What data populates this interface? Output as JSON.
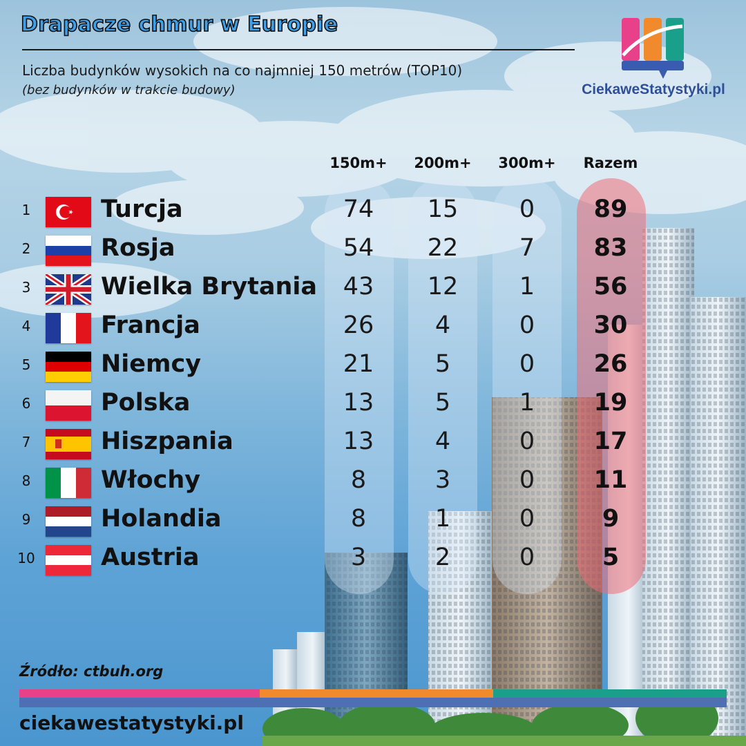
{
  "header": {
    "title": "Drapacze chmur w Europie",
    "subtitle": "Liczba budynków wysokich na co najmniej  150 metrów (TOP10)",
    "note": "(bez budynków w trakcie budowy)"
  },
  "brand": {
    "logo_text": "CiekaweStatystyki.pl",
    "colors": [
      "#e8418a",
      "#f08a2c",
      "#1aa08a",
      "#3a5cb0"
    ]
  },
  "footer": {
    "source": "Źródło: ctbuh.org",
    "site": "ciekawestatystyki.pl"
  },
  "chart_data": {
    "type": "table",
    "columns": [
      "150m+",
      "200m+",
      "300m+",
      "Razem"
    ],
    "rows": [
      {
        "rank": "1",
        "country": "Turcja",
        "flag": "turkey-flag",
        "values": [
          "74",
          "15",
          "0",
          "89"
        ]
      },
      {
        "rank": "2",
        "country": "Rosja",
        "flag": "russia-flag",
        "values": [
          "54",
          "22",
          "7",
          "83"
        ]
      },
      {
        "rank": "3",
        "country": "Wielka Brytania",
        "flag": "uk-flag",
        "values": [
          "43",
          "12",
          "1",
          "56"
        ]
      },
      {
        "rank": "4",
        "country": "Francja",
        "flag": "france-flag",
        "values": [
          "26",
          "4",
          "0",
          "30"
        ]
      },
      {
        "rank": "5",
        "country": "Niemcy",
        "flag": "germany-flag",
        "values": [
          "21",
          "5",
          "0",
          "26"
        ]
      },
      {
        "rank": "6",
        "country": "Polska",
        "flag": "poland-flag",
        "values": [
          "13",
          "5",
          "1",
          "19"
        ]
      },
      {
        "rank": "7",
        "country": "Hiszpania",
        "flag": "spain-flag",
        "values": [
          "13",
          "4",
          "0",
          "17"
        ]
      },
      {
        "rank": "8",
        "country": "Włochy",
        "flag": "italy-flag",
        "values": [
          "8",
          "3",
          "0",
          "11"
        ]
      },
      {
        "rank": "9",
        "country": "Holandia",
        "flag": "netherlands-flag",
        "values": [
          "8",
          "1",
          "0",
          "9"
        ]
      },
      {
        "rank": "10",
        "country": "Austria",
        "flag": "austria-flag",
        "values": [
          "3",
          "2",
          "0",
          "5"
        ]
      }
    ],
    "highlight_column": "Razem",
    "highlight_color": "#e86a74"
  }
}
